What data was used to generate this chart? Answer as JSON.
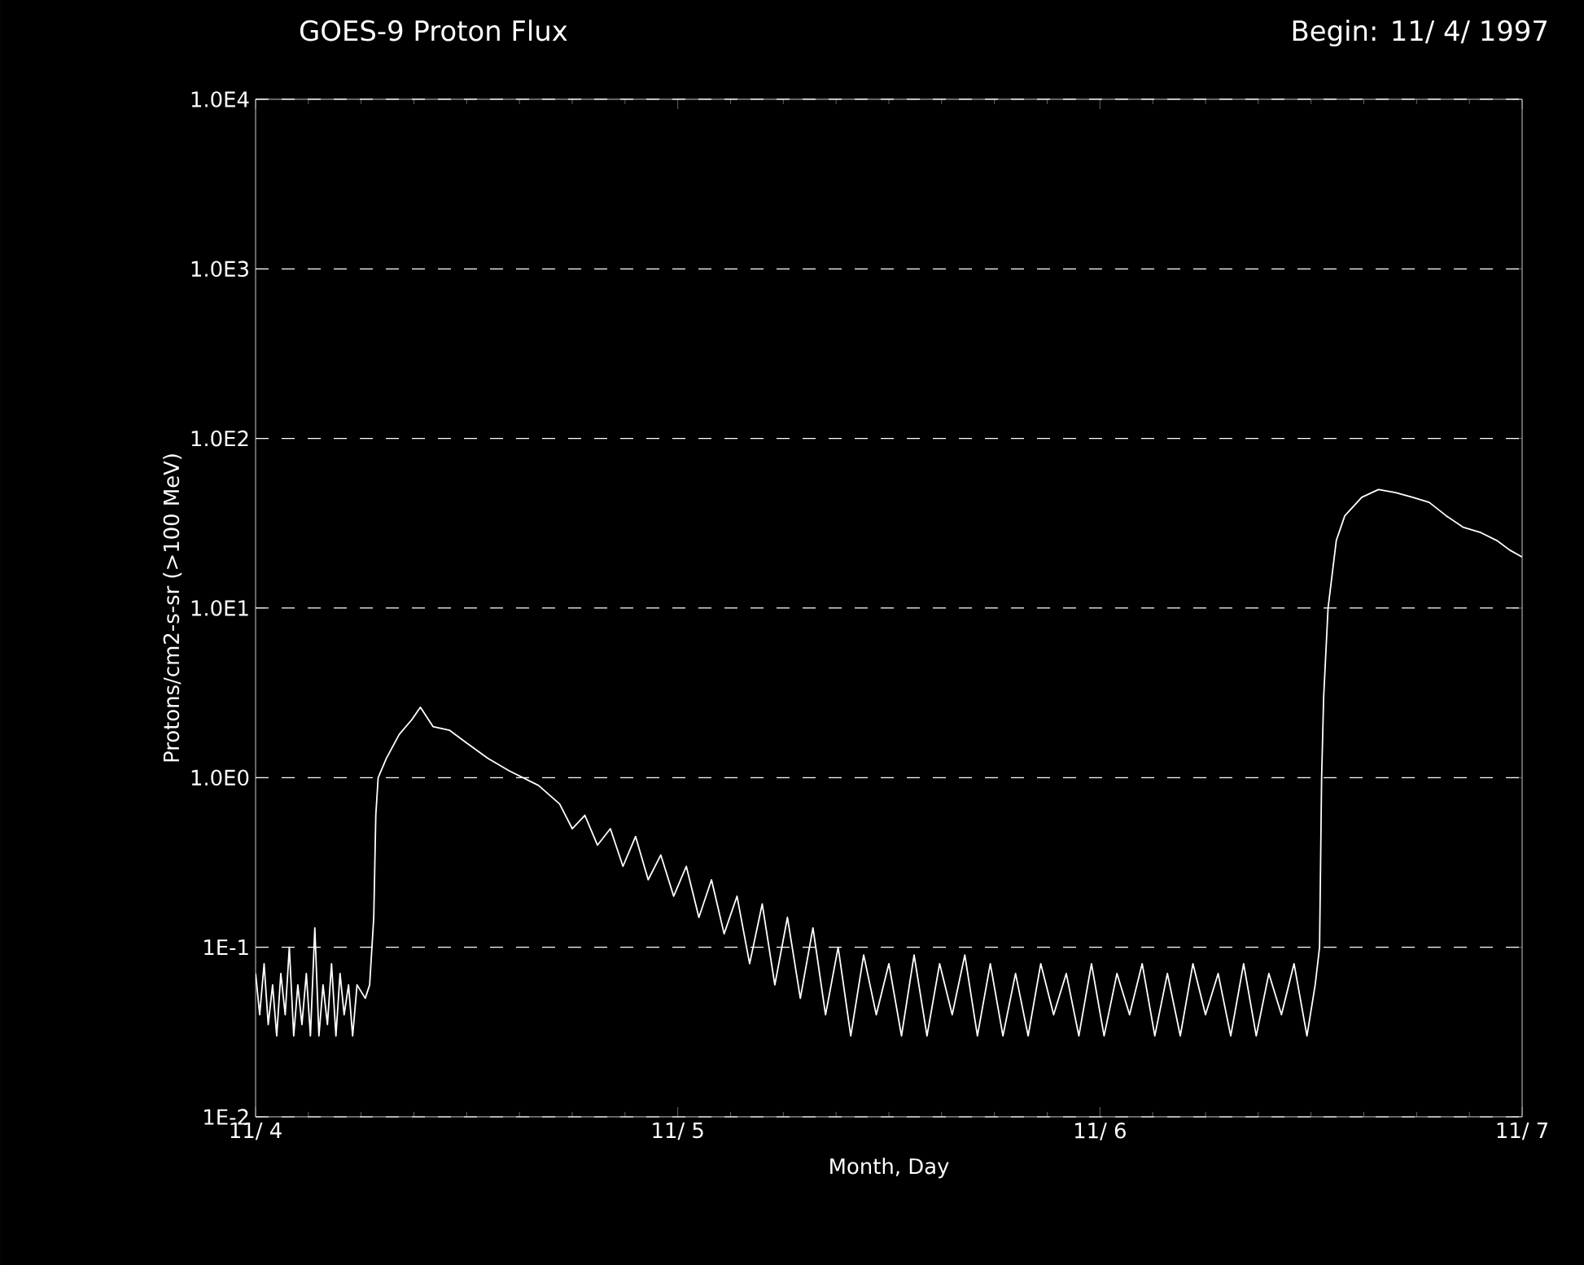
{
  "chart_data": {
    "type": "line",
    "title": "GOES-9 Proton Flux",
    "subtitle": "Begin: 11/ 4/ 1997",
    "xlabel": "Month, Day",
    "ylabel": "Protons/cm2-s-sr (>100 MeV)",
    "log": "y",
    "grid": "y",
    "line_style": "solid",
    "xlim": [
      "1997-11-04",
      "1997-11-07"
    ],
    "xticks": [
      {
        "value": "1997-11-04",
        "label": "11/ 4"
      },
      {
        "value": "1997-11-05",
        "label": "11/ 5"
      },
      {
        "value": "1997-11-06",
        "label": "11/ 6"
      },
      {
        "value": "1997-11-07",
        "label": "11/ 7"
      }
    ],
    "ylim": [
      0.01,
      10000
    ],
    "yticks": [
      {
        "value": 10000,
        "label": "1.0E4"
      },
      {
        "value": 1000,
        "label": "1.0E3"
      },
      {
        "value": 100,
        "label": "1.0E2"
      },
      {
        "value": 10,
        "label": "1.0E1"
      },
      {
        "value": 1,
        "label": "1.0E0"
      },
      {
        "value": 0.1,
        "label": "1E-1"
      },
      {
        "value": 0.01,
        "label": "1E-2"
      }
    ],
    "series": [
      {
        "color": "#ffffff",
        "x": [
          "1997-11-04T00:00",
          "1997-11-04T00:14",
          "1997-11-04T00:29",
          "1997-11-04T00:43",
          "1997-11-04T00:58",
          "1997-11-04T01:12",
          "1997-11-04T01:26",
          "1997-11-04T01:41",
          "1997-11-04T01:55",
          "1997-11-04T02:10",
          "1997-11-04T02:24",
          "1997-11-04T02:38",
          "1997-11-04T02:53",
          "1997-11-04T03:07",
          "1997-11-04T03:22",
          "1997-11-04T03:36",
          "1997-11-04T03:50",
          "1997-11-04T04:05",
          "1997-11-04T04:19",
          "1997-11-04T04:34",
          "1997-11-04T04:48",
          "1997-11-04T05:02",
          "1997-11-04T05:17",
          "1997-11-04T05:31",
          "1997-11-04T05:46",
          "1997-11-04T06:14",
          "1997-11-04T06:29",
          "1997-11-04T06:43",
          "1997-11-04T06:50",
          "1997-11-04T06:58",
          "1997-11-04T07:26",
          "1997-11-04T08:10",
          "1997-11-04T08:53",
          "1997-11-04T09:22",
          "1997-11-04T10:05",
          "1997-11-04T11:02",
          "1997-11-04T12:00",
          "1997-11-04T13:12",
          "1997-11-04T14:24",
          "1997-11-04T16:05",
          "1997-11-04T17:17",
          "1997-11-04T18:00",
          "1997-11-04T18:43",
          "1997-11-04T19:26",
          "1997-11-04T20:10",
          "1997-11-04T20:53",
          "1997-11-04T21:36",
          "1997-11-04T22:19",
          "1997-11-04T23:02",
          "1997-11-04T23:46",
          "1997-11-05T00:29",
          "1997-11-05T01:12",
          "1997-11-05T01:55",
          "1997-11-05T02:38",
          "1997-11-05T03:22",
          "1997-11-05T04:05",
          "1997-11-05T04:48",
          "1997-11-05T05:31",
          "1997-11-05T06:14",
          "1997-11-05T06:58",
          "1997-11-05T07:41",
          "1997-11-05T08:24",
          "1997-11-05T09:07",
          "1997-11-05T09:50",
          "1997-11-05T10:34",
          "1997-11-05T11:17",
          "1997-11-05T12:00",
          "1997-11-05T12:43",
          "1997-11-05T13:26",
          "1997-11-05T14:10",
          "1997-11-05T14:53",
          "1997-11-05T15:36",
          "1997-11-05T16:19",
          "1997-11-05T17:02",
          "1997-11-05T17:46",
          "1997-11-05T18:29",
          "1997-11-05T19:12",
          "1997-11-05T19:55",
          "1997-11-05T20:38",
          "1997-11-05T21:22",
          "1997-11-05T22:05",
          "1997-11-05T22:48",
          "1997-11-05T23:31",
          "1997-11-06T00:14",
          "1997-11-06T00:58",
          "1997-11-06T01:41",
          "1997-11-06T02:24",
          "1997-11-06T03:07",
          "1997-11-06T03:50",
          "1997-11-06T04:34",
          "1997-11-06T05:17",
          "1997-11-06T06:00",
          "1997-11-06T06:43",
          "1997-11-06T07:26",
          "1997-11-06T08:10",
          "1997-11-06T08:53",
          "1997-11-06T09:36",
          "1997-11-06T10:19",
          "1997-11-06T11:02",
          "1997-11-06T11:46",
          "1997-11-06T12:14",
          "1997-11-06T12:29",
          "1997-11-06T12:36",
          "1997-11-06T12:43",
          "1997-11-06T12:58",
          "1997-11-06T13:26",
          "1997-11-06T13:55",
          "1997-11-06T14:53",
          "1997-11-06T15:50",
          "1997-11-06T16:48",
          "1997-11-06T17:46",
          "1997-11-06T18:43",
          "1997-11-06T19:41",
          "1997-11-06T20:38",
          "1997-11-06T21:36",
          "1997-11-06T22:34",
          "1997-11-06T23:17",
          "1997-11-07T00:00"
        ],
        "values": [
          0.07,
          0.04,
          0.08,
          0.035,
          0.06,
          0.03,
          0.07,
          0.04,
          0.1,
          0.03,
          0.06,
          0.035,
          0.07,
          0.03,
          0.13,
          0.03,
          0.06,
          0.035,
          0.08,
          0.03,
          0.07,
          0.04,
          0.06,
          0.03,
          0.06,
          0.05,
          0.06,
          0.15,
          0.6,
          1.0,
          1.3,
          1.8,
          2.2,
          2.6,
          2.0,
          1.9,
          1.6,
          1.3,
          1.1,
          0.9,
          0.7,
          0.5,
          0.6,
          0.4,
          0.5,
          0.3,
          0.45,
          0.25,
          0.35,
          0.2,
          0.3,
          0.15,
          0.25,
          0.12,
          0.2,
          0.08,
          0.18,
          0.06,
          0.15,
          0.05,
          0.13,
          0.04,
          0.1,
          0.03,
          0.09,
          0.04,
          0.08,
          0.03,
          0.09,
          0.03,
          0.08,
          0.04,
          0.09,
          0.03,
          0.08,
          0.03,
          0.07,
          0.03,
          0.08,
          0.04,
          0.07,
          0.03,
          0.08,
          0.03,
          0.07,
          0.04,
          0.08,
          0.03,
          0.07,
          0.03,
          0.08,
          0.04,
          0.07,
          0.03,
          0.08,
          0.03,
          0.07,
          0.04,
          0.08,
          0.03,
          0.06,
          0.1,
          1.0,
          3,
          10,
          25,
          35,
          45,
          50,
          48,
          45,
          42,
          35,
          30,
          28,
          25,
          22,
          20
        ]
      }
    ]
  }
}
